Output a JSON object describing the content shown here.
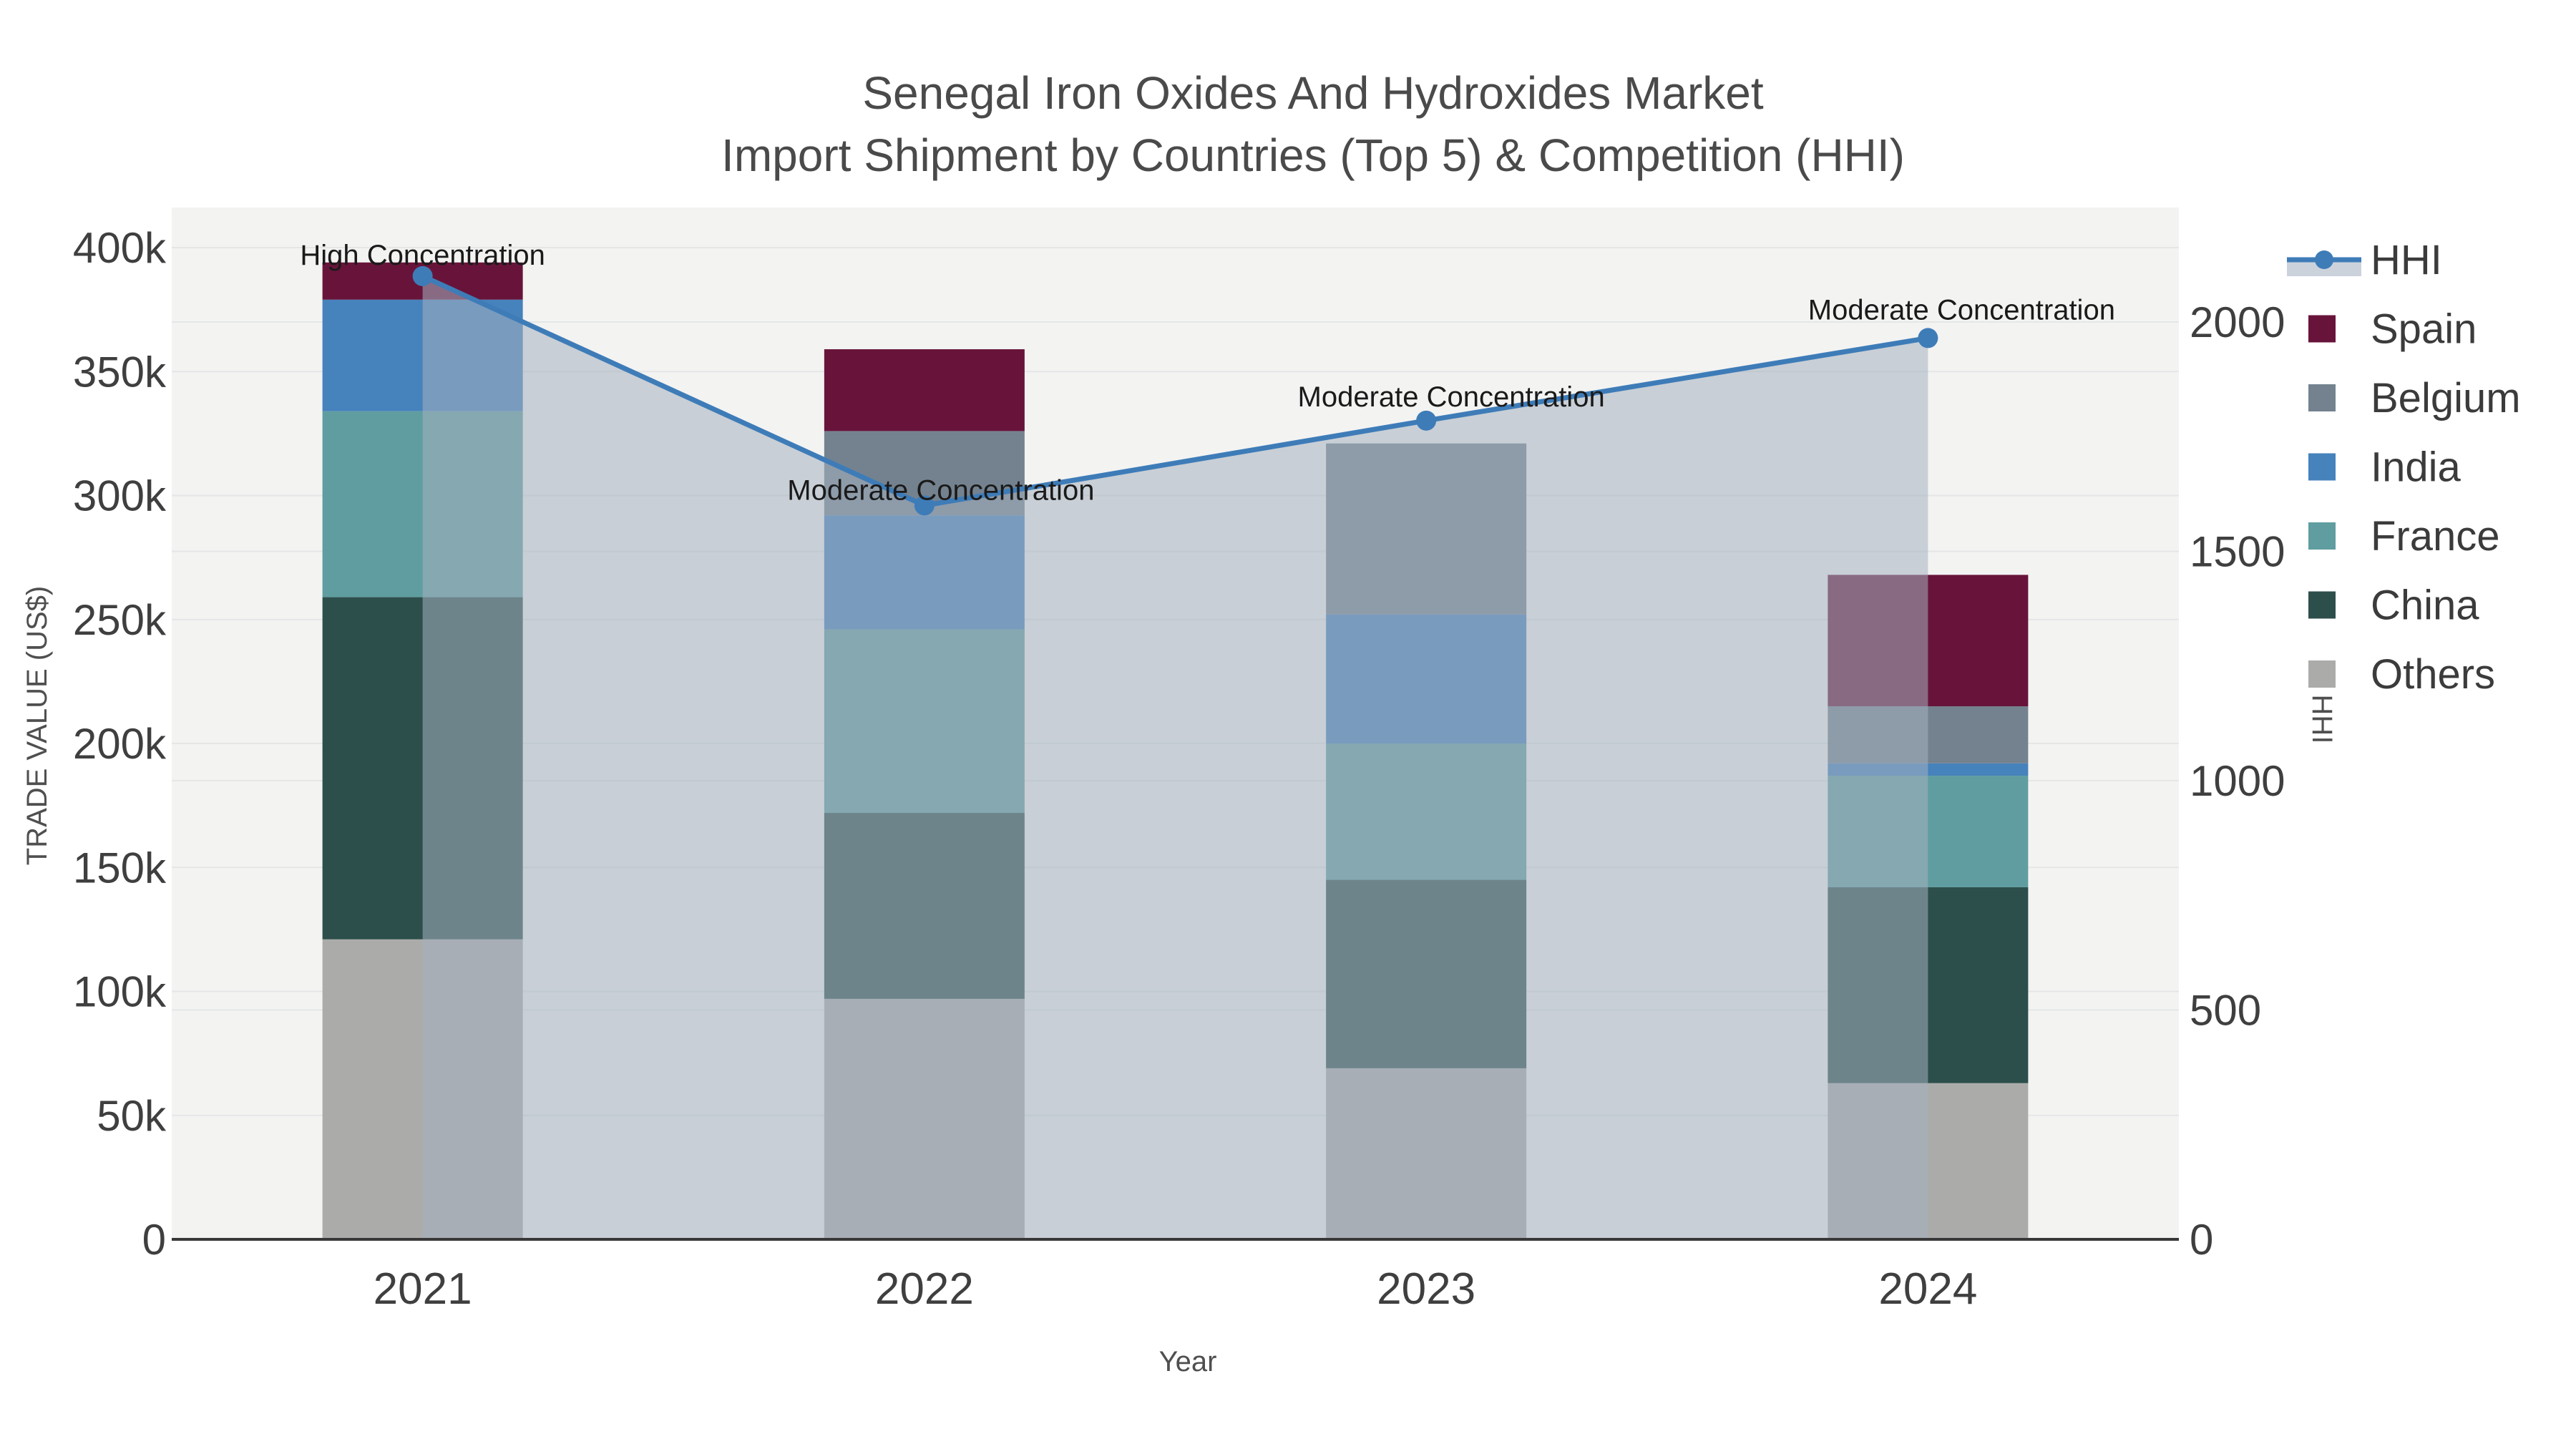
{
  "title": {
    "line1": "Senegal Iron Oxides And Hydroxides Market",
    "line2": "Import Shipment by Countries (Top 5) & Competition (HHI)"
  },
  "colors": {
    "hhi_line": "#3E7CB8",
    "hhi_area_fill": "rgba(164,176,192,0.55)",
    "hhi_legend_band": "#CBD2DC",
    "plot_bg": "#F3F3F2",
    "grid": "#E5E6E6",
    "axis_line": "#383838",
    "spain": "#68143A",
    "belgium": "#74828F",
    "india": "#4682BC",
    "france": "#5F9DA0",
    "china": "#2D4F4C",
    "others": "#ABACAA"
  },
  "chart_data": {
    "type": "bar+line",
    "title": "Senegal Iron Oxides And Hydroxides Market — Import Shipment by Countries (Top 5) & Competition (HHI)",
    "categories": [
      "2021",
      "2022",
      "2023",
      "2024"
    ],
    "series": [
      {
        "name": "Spain",
        "color": "#68143A",
        "values": [
          15000,
          33000,
          0,
          53000
        ]
      },
      {
        "name": "Belgium",
        "color": "#74828F",
        "values": [
          0,
          34000,
          69000,
          23000
        ]
      },
      {
        "name": "India",
        "color": "#4682BC",
        "values": [
          45000,
          46000,
          52000,
          5000
        ]
      },
      {
        "name": "France",
        "color": "#5F9DA0",
        "values": [
          75000,
          74000,
          55000,
          45000
        ]
      },
      {
        "name": "China",
        "color": "#2D4F4C",
        "values": [
          138000,
          75000,
          76000,
          79000
        ]
      },
      {
        "name": "Others",
        "color": "#ABACAA",
        "values": [
          121000,
          97000,
          69000,
          63000
        ]
      }
    ],
    "bar_totals": [
      394000,
      359000,
      321000,
      268000
    ],
    "line_series": {
      "name": "HHI",
      "color": "#3E7CB8",
      "values": [
        2100,
        1600,
        1785,
        1965
      ]
    },
    "annotations": [
      {
        "text": "High Concentration"
      },
      {
        "text": "Moderate Concentration"
      },
      {
        "text": "Moderate Concentration"
      },
      {
        "text": "Moderate Concentration"
      }
    ],
    "x_axis": {
      "label": "Year",
      "ticks": [
        "2021",
        "2022",
        "2023",
        "2024"
      ]
    },
    "y_left": {
      "label": "TRADE VALUE (US$)",
      "max": 400000,
      "ticks": [
        {
          "v": 0,
          "t": "0"
        },
        {
          "v": 50000,
          "t": "50k"
        },
        {
          "v": 100000,
          "t": "100k"
        },
        {
          "v": 150000,
          "t": "150k"
        },
        {
          "v": 200000,
          "t": "200k"
        },
        {
          "v": 250000,
          "t": "250k"
        },
        {
          "v": 300000,
          "t": "300k"
        },
        {
          "v": 350000,
          "t": "350k"
        },
        {
          "v": 400000,
          "t": "400k"
        }
      ]
    },
    "y_right": {
      "label": "HHI",
      "max": 2000,
      "ticks": [
        {
          "v": 0,
          "t": "0"
        },
        {
          "v": 500,
          "t": "500"
        },
        {
          "v": 1000,
          "t": "1000"
        },
        {
          "v": 1500,
          "t": "1500"
        },
        {
          "v": 2000,
          "t": "2000"
        }
      ]
    },
    "legend_order": [
      "HHI",
      "Spain",
      "Belgium",
      "India",
      "France",
      "China",
      "Others"
    ],
    "grid": true,
    "legend_position": "top-right"
  }
}
